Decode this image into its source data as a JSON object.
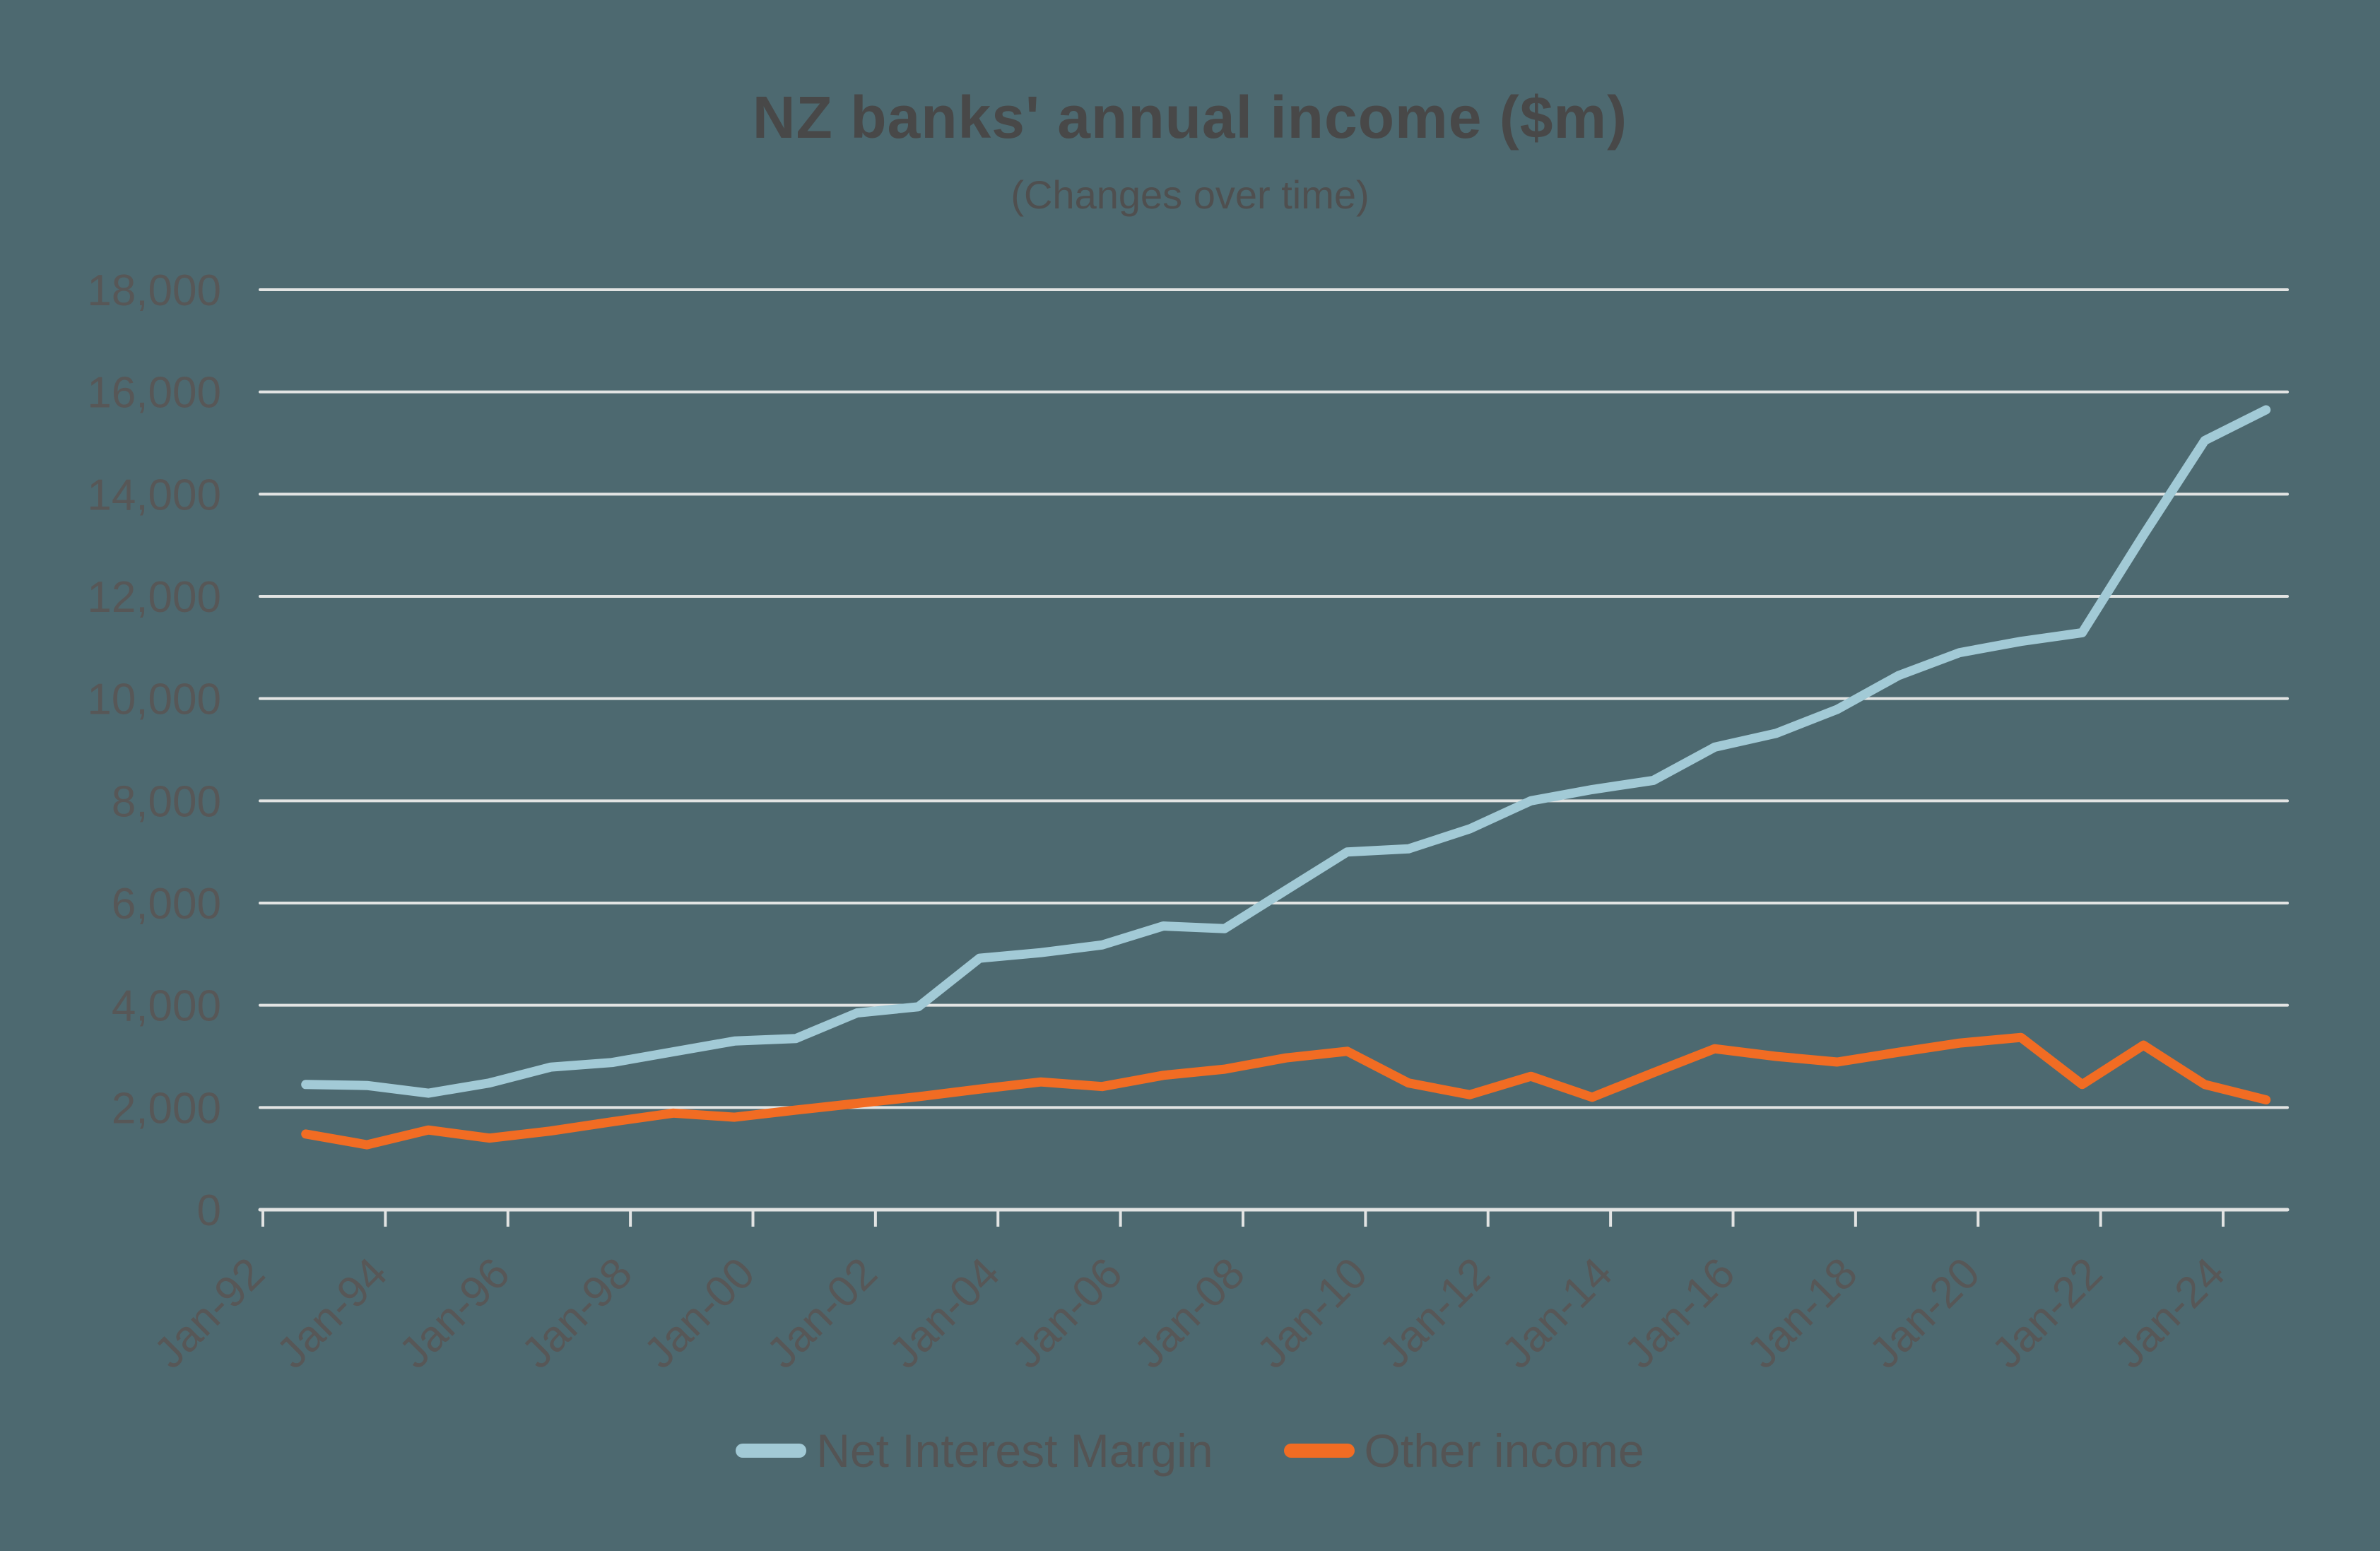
{
  "title": "NZ banks' annual income ($m)",
  "subtitle": "(Changes over time)",
  "colors": {
    "background": "#4D6970",
    "nim_line": "#A2CAD6",
    "other_income_line": "#F16C23",
    "gridline": "#E2E4E3",
    "axis": "#E2E4E3",
    "tick_label": "#575757",
    "title_text": "#484848",
    "subtitle_text": "#4F4F4F",
    "legend_text": "#545454"
  },
  "legend": [
    {
      "label": "Net Interest Margin",
      "color_key": "nim_line"
    },
    {
      "label": "Other income",
      "color_key": "other_income_line"
    }
  ],
  "chart_data": {
    "type": "line",
    "title": "NZ banks' annual income ($m)",
    "subtitle": "(Changes over time)",
    "xlabel": "",
    "ylabel": "",
    "ylim": [
      0,
      18000
    ],
    "ytick_step": 2000,
    "ytick_values": [
      0,
      2000,
      4000,
      6000,
      8000,
      10000,
      12000,
      14000,
      16000,
      18000
    ],
    "ytick_labels": [
      "0",
      "2,000",
      "4,000",
      "6,000",
      "8,000",
      "10,000",
      "12,000",
      "14,000",
      "16,000",
      "18,000"
    ],
    "xtick_years": [
      1992,
      1994,
      1996,
      1998,
      2000,
      2002,
      2004,
      2006,
      2008,
      2010,
      2012,
      2014,
      2016,
      2018,
      2020,
      2022,
      2024
    ],
    "xtick_labels": [
      "Jan-92",
      "Jan-94",
      "Jan-96",
      "Jan-98",
      "Jan-00",
      "Jan-02",
      "Jan-04",
      "Jan-06",
      "Jan-08",
      "Jan-10",
      "Jan-12",
      "Jan-14",
      "Jan-16",
      "Jan-18",
      "Jan-20",
      "Jan-22",
      "Jan-24"
    ],
    "x_years": [
      1992,
      1993,
      1994,
      1995,
      1996,
      1997,
      1998,
      1999,
      2000,
      2001,
      2002,
      2003,
      2004,
      2005,
      2006,
      2007,
      2008,
      2009,
      2010,
      2011,
      2012,
      2013,
      2014,
      2015,
      2016,
      2017,
      2018,
      2019,
      2020,
      2021,
      2022,
      2023,
      2024
    ],
    "x_offset_years": 0.7,
    "grid": "horizontal",
    "legend_position": "bottom-center",
    "series": [
      {
        "name": "Net Interest Margin",
        "color_key": "nim_line",
        "values": [
          2450,
          2430,
          2280,
          2480,
          2790,
          2880,
          3090,
          3300,
          3350,
          3850,
          3970,
          4920,
          5030,
          5180,
          5550,
          5500,
          6250,
          7000,
          7060,
          7450,
          8000,
          8220,
          8400,
          9050,
          9320,
          9790,
          10450,
          10900,
          11120,
          11290,
          13200,
          15050,
          15650
        ]
      },
      {
        "name": "Other income",
        "color_key": "other_income_line",
        "values": [
          1480,
          1270,
          1560,
          1400,
          1540,
          1720,
          1890,
          1810,
          1950,
          2080,
          2210,
          2360,
          2500,
          2410,
          2630,
          2750,
          2970,
          3100,
          2480,
          2250,
          2610,
          2200,
          2680,
          3150,
          3000,
          2890,
          3080,
          3260,
          3370,
          2450,
          3220,
          2450,
          2150
        ]
      }
    ]
  }
}
